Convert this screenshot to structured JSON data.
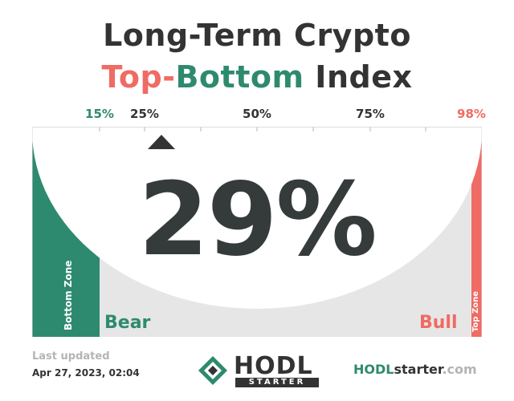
{
  "title": {
    "line1": "Long-Term Crypto",
    "line2_top": "Top",
    "line2_sep": "-",
    "line2_bottom": "Bottom",
    "line2_rest": " Index"
  },
  "gauge": {
    "value": 29,
    "value_label": "29%",
    "tick_labels": [
      "15%",
      "25%",
      "50%",
      "75%",
      "98%"
    ],
    "bottom_zone_label": "Bottom Zone",
    "top_zone_label": "Top Zone",
    "bear_label": "Bear",
    "bull_label": "Bull"
  },
  "footer": {
    "updated_title": "Last updated",
    "updated_date": "Apr 27, 2023, 02:04",
    "logo_word": "HODL",
    "logo_sub": "STARTER",
    "site_prefix": "HODL",
    "site_mid": "starter",
    "site_suffix": ".com"
  },
  "colors": {
    "green": "#2e8a6e",
    "red": "#ef6b64",
    "dark": "#333333",
    "gray": "#e6e6e6"
  },
  "icons": [
    "triangle-indicator-icon",
    "hodl-logo-icon"
  ]
}
